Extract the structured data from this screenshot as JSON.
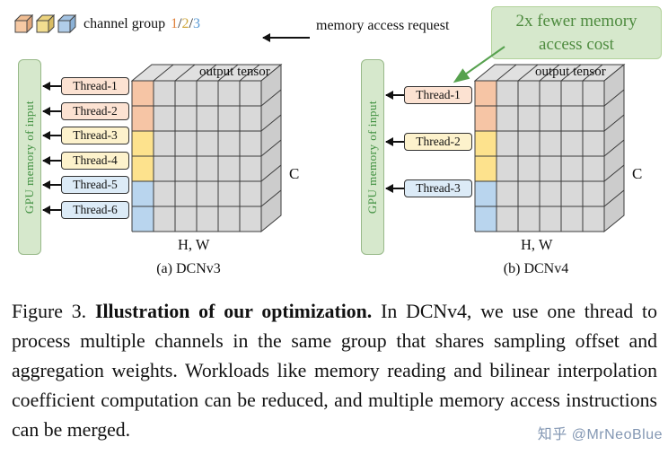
{
  "colors": {
    "accent_green_text": "#4e8b3f",
    "green_box_bg": "#d6e8cc",
    "arrow_black": "#111111",
    "green_arrow": "#56a14e"
  },
  "legend": {
    "label": "channel group",
    "cubes": [
      {
        "front": "#f6c9a4",
        "top": "#f0bd92",
        "side": "#e2a87c"
      },
      {
        "front": "#f2dd90",
        "top": "#ecd37e",
        "side": "#d9bc62"
      },
      {
        "front": "#b1cde9",
        "top": "#a3c3e3",
        "side": "#8bb1d6"
      }
    ],
    "numbers": [
      {
        "text": "1",
        "style": "color:#e0823c"
      },
      {
        "text": "/",
        "style": "color:#1a1a1a"
      },
      {
        "text": "2",
        "style": "color:#cfa63a"
      },
      {
        "text": "/",
        "style": "color:#1a1a1a"
      },
      {
        "text": "3",
        "style": "color:#5b9bd5"
      }
    ]
  },
  "memory_request_label": "memory access request",
  "callout": {
    "line1": "2x fewer memory",
    "line2": "access cost"
  },
  "tensor": {
    "rows": 6,
    "cols": 6,
    "front_color": "#d9d9d9",
    "top_color": "#e0e0e0",
    "side_color": "#cccccc",
    "line_color": "#3c3c3c",
    "group_colors": [
      "#f6c5a5",
      "#fde28d",
      "#b9d5ee"
    ]
  },
  "diagram_a": {
    "gpu_label": "GPU memory of input",
    "threads": [
      {
        "label": "Thread-1",
        "style": "background:#fce2d2"
      },
      {
        "label": "Thread-2",
        "style": "background:#fce2d2"
      },
      {
        "label": "Thread-3",
        "style": "background:#fdf2cc"
      },
      {
        "label": "Thread-4",
        "style": "background:#fdf2cc"
      },
      {
        "label": "Thread-5",
        "style": "background:#dcebf7"
      },
      {
        "label": "Thread-6",
        "style": "background:#dcebf7"
      }
    ],
    "tensor_label": "output tensor",
    "c_label": "C",
    "hw_label": "H, W",
    "caption": "(a) DCNv3"
  },
  "diagram_b": {
    "gpu_label": "GPU memory of input",
    "threads": [
      {
        "label": "Thread-1",
        "style": "background:#fce2d2"
      },
      {
        "label": "Thread-2",
        "style": "background:#fdf2cc"
      },
      {
        "label": "Thread-3",
        "style": "background:#dcebf7"
      }
    ],
    "tensor_label": "output tensor",
    "c_label": "C",
    "hw_label": "H, W",
    "caption": "(b) DCNv4"
  },
  "figure_caption": {
    "prefix": "Figure 3.",
    "bold": "Illustration of our optimization.",
    "body": "In DCNv4, we use one thread to process multiple channels in the same group that shares sampling offset and aggregation weights. Workloads like memory reading and bilinear interpolation coefficient computation can be reduced, and multiple memory access instructions can be merged."
  },
  "watermark": "知乎 @MrNeoBlue"
}
